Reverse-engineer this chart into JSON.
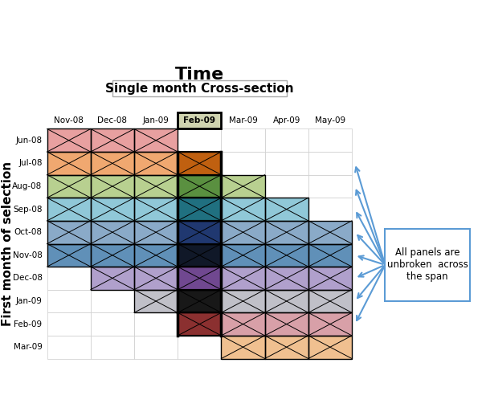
{
  "title": "Single month Cross-section",
  "time_label": "Time",
  "y_label": "First month of selection",
  "col_labels": [
    "Nov-08",
    "Dec-08",
    "Jan-09",
    "Feb-09",
    "Mar-09",
    "Apr-09",
    "May-09"
  ],
  "row_labels": [
    "Jun-08",
    "Jul-08",
    "Aug-08",
    "Sep-08",
    "Oct-08",
    "Nov-08",
    "Dec-08",
    "Jan-09",
    "Feb-09",
    "Mar-09"
  ],
  "highlight_col": 3,
  "annotation": "All panels are\nunbroken  across\nthe span",
  "panel_colors": {
    "panel0": [
      "#e8a0a0",
      "#e8a0a0",
      "#e8a0a0"
    ],
    "panel1": [
      "#f5c08a",
      "#f5c08a",
      "#f5c08a"
    ],
    "panel2": [
      "#c8d89a",
      "#c8d89a",
      "#c8d99a"
    ],
    "panel3": [
      "#90c4d8",
      "#90c4d8",
      "#90c4d8"
    ],
    "panel4": [
      "#7090c0",
      "#7090c0",
      "#7090c0"
    ],
    "panel5": [
      "#6090b8",
      "#6090b8",
      "#6090b8"
    ],
    "panel6": [
      "#b0a8d0",
      "#b0a8d0",
      "#b0a8d0"
    ],
    "panel7": [
      "#c0c0c8",
      "#c0c0c8",
      "#c0c0c8"
    ],
    "panel8": [
      "#dda0a0",
      "#dda0a0",
      "#dda0a0"
    ],
    "panel9": [
      "#f0c090",
      "#f0c090",
      "#f0c090"
    ]
  },
  "cross_col_colors": [
    "#e8706a",
    "#c06010",
    "#5a9040",
    "#207090",
    "#1a3a70",
    "#1a2a60",
    "#7050a0",
    "#303030",
    "#903030",
    "#ffffff"
  ],
  "bg_color": "#ffffff",
  "grid_color": "#cccccc",
  "highlight_col_header_color": "#d0d4b0",
  "arrow_color": "#5b9bd5"
}
